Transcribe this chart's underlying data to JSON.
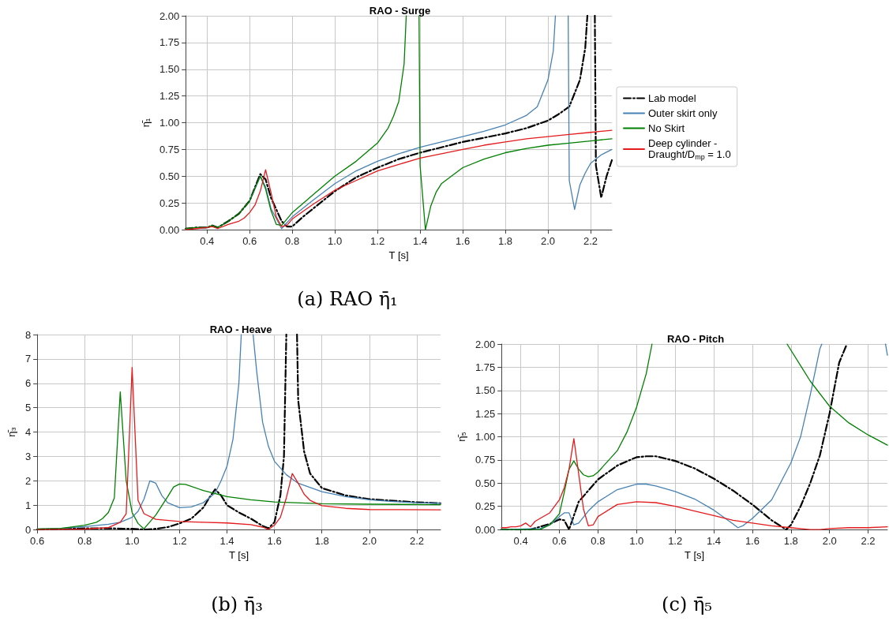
{
  "chart_data": [
    {
      "type": "line",
      "title": "RAO - Surge",
      "xlabel": "T [s]",
      "ylabel": "η̄₁",
      "annotations": [
        "(a) RAO η̄₁"
      ],
      "xlim": [
        0.3,
        2.3
      ],
      "xticks": [
        {
          "value": 0.4,
          "label": "0.4"
        },
        {
          "value": 0.6,
          "label": "0.6"
        },
        {
          "value": 0.8,
          "label": "0.8"
        },
        {
          "value": 1.0,
          "label": "1.0"
        },
        {
          "value": 1.2,
          "label": "1.2"
        },
        {
          "value": 1.4,
          "label": "1.4"
        },
        {
          "value": 1.6,
          "label": "1.6"
        },
        {
          "value": 1.8,
          "label": "1.8"
        },
        {
          "value": 2.0,
          "label": "2.0"
        },
        {
          "value": 2.2,
          "label": "2.2"
        }
      ],
      "ylim": [
        0,
        2
      ],
      "yticks": [
        {
          "value": 0,
          "label": "0.00"
        },
        {
          "value": 0.25,
          "label": "0.25"
        },
        {
          "value": 0.5,
          "label": "0.50"
        },
        {
          "value": 0.75,
          "label": "0.75"
        },
        {
          "value": 1,
          "label": "1.00"
        },
        {
          "value": 1.25,
          "label": "1.25"
        },
        {
          "value": 1.5,
          "label": "1.50"
        },
        {
          "value": 1.75,
          "label": "1.75"
        },
        {
          "value": 2,
          "label": "2.00"
        }
      ],
      "grid": true,
      "legend": "right",
      "marker": "none",
      "series": [
        {
          "name": "Lab model",
          "color": "#000000",
          "line_style": "dashdot",
          "x": [
            0.3,
            0.35,
            0.4,
            0.425,
            0.45,
            0.5,
            0.55,
            0.6,
            0.65,
            0.675,
            0.7,
            0.75,
            0.775,
            0.8,
            0.85,
            0.9,
            1.0,
            1.1,
            1.2,
            1.3,
            1.4,
            1.5,
            1.6,
            1.7,
            1.8,
            1.9,
            2.0,
            2.05,
            2.1,
            2.15,
            2.175,
            2.185,
            2.2,
            2.22,
            2.225,
            2.25,
            2.275,
            2.3
          ],
          "values": [
            0.01,
            0.02,
            0.02,
            0.04,
            0.02,
            0.08,
            0.15,
            0.27,
            0.52,
            0.47,
            0.3,
            0.08,
            0.03,
            0.03,
            0.12,
            0.2,
            0.36,
            0.49,
            0.58,
            0.66,
            0.72,
            0.77,
            0.82,
            0.86,
            0.9,
            0.95,
            1.02,
            1.08,
            1.15,
            1.4,
            1.7,
            2.0,
            null,
            2.0,
            0.6,
            0.3,
            0.5,
            0.65
          ]
        },
        {
          "name": "Outer skirt only",
          "color": "#4682b4",
          "line_style": "solid",
          "x": [
            0.6,
            0.65,
            0.675,
            0.7,
            0.75,
            0.8,
            0.9,
            1.0,
            1.1,
            1.2,
            1.3,
            1.4,
            1.5,
            1.6,
            1.7,
            1.8,
            1.9,
            1.95,
            2.0,
            2.025,
            2.035,
            2.06,
            2.095,
            2.1,
            2.125,
            2.15,
            2.175,
            2.2,
            2.25,
            2.3
          ],
          "values": [
            0.27,
            0.5,
            0.4,
            0.2,
            0.01,
            0.12,
            0.28,
            0.43,
            0.55,
            0.64,
            0.71,
            0.77,
            0.82,
            0.87,
            0.92,
            0.98,
            1.07,
            1.15,
            1.4,
            1.67,
            2.0,
            null,
            2.0,
            0.46,
            0.19,
            0.42,
            0.53,
            0.62,
            0.7,
            0.75
          ]
        },
        {
          "name": "No Skirt",
          "color": "#008000",
          "line_style": "solid",
          "x": [
            0.3,
            0.35,
            0.4,
            0.425,
            0.45,
            0.5,
            0.55,
            0.6,
            0.65,
            0.675,
            0.7,
            0.725,
            0.75,
            0.775,
            0.8,
            0.9,
            1.0,
            1.1,
            1.2,
            1.25,
            1.275,
            1.3,
            1.325,
            1.335,
            1.36,
            1.395,
            1.4,
            1.425,
            1.45,
            1.475,
            1.5,
            1.6,
            1.7,
            1.8,
            1.9,
            2.0,
            2.1,
            2.2,
            2.3
          ],
          "values": [
            0.01,
            0.02,
            0.02,
            0.04,
            0.02,
            0.08,
            0.15,
            0.27,
            0.5,
            0.38,
            0.18,
            0.05,
            0.04,
            0.1,
            0.16,
            0.33,
            0.5,
            0.64,
            0.81,
            0.95,
            1.06,
            1.2,
            1.55,
            2.0,
            null,
            2.0,
            0.6,
            0.0,
            0.22,
            0.35,
            0.43,
            0.58,
            0.66,
            0.72,
            0.76,
            0.79,
            0.81,
            0.83,
            0.85
          ]
        },
        {
          "name": "Deep cylinder -\nDraught/D$_{mp}$ = 1.0",
          "color": "#e41a1c",
          "line_style": "solid",
          "x": [
            0.3,
            0.35,
            0.4,
            0.425,
            0.45,
            0.5,
            0.55,
            0.575,
            0.6,
            0.625,
            0.65,
            0.675,
            0.7,
            0.725,
            0.75,
            0.775,
            0.8,
            0.9,
            1.0,
            1.1,
            1.2,
            1.3,
            1.4,
            1.5,
            1.6,
            1.7,
            1.8,
            1.9,
            2.0,
            2.1,
            2.2,
            2.3
          ],
          "values": [
            0.0,
            0.01,
            0.02,
            0.03,
            0.01,
            0.05,
            0.08,
            0.11,
            0.16,
            0.23,
            0.36,
            0.56,
            0.35,
            0.12,
            0.03,
            0.04,
            0.1,
            0.24,
            0.37,
            0.46,
            0.55,
            0.61,
            0.67,
            0.71,
            0.75,
            0.79,
            0.82,
            0.85,
            0.87,
            0.89,
            0.91,
            0.93
          ]
        }
      ]
    },
    {
      "type": "line",
      "title": "RAO - Heave",
      "xlabel": "T [s]",
      "ylabel": "η̄₃",
      "annotations": [
        "(b) η̄₃"
      ],
      "xlim": [
        0.6,
        2.3
      ],
      "xticks": [
        {
          "value": 0.6,
          "label": "0.6"
        },
        {
          "value": 0.8,
          "label": "0.8"
        },
        {
          "value": 1.0,
          "label": "1.0"
        },
        {
          "value": 1.2,
          "label": "1.2"
        },
        {
          "value": 1.4,
          "label": "1.4"
        },
        {
          "value": 1.6,
          "label": "1.6"
        },
        {
          "value": 1.8,
          "label": "1.8"
        },
        {
          "value": 2.0,
          "label": "2.0"
        },
        {
          "value": 2.2,
          "label": "2.2"
        }
      ],
      "ylim": [
        0,
        8
      ],
      "yticks": [
        0,
        1,
        2,
        3,
        4,
        5,
        6,
        7,
        8
      ],
      "grid": true,
      "marker": "none",
      "series": [
        {
          "color": "#000000",
          "line_style": "dashdot",
          "x": [
            0.6,
            0.7,
            0.8,
            0.9,
            1.0,
            1.05,
            1.1,
            1.15,
            1.2,
            1.25,
            1.3,
            1.325,
            1.35,
            1.375,
            1.4,
            1.45,
            1.5,
            1.55,
            1.575,
            1.6,
            1.625,
            1.64,
            1.65,
            1.67,
            1.695,
            1.7,
            1.725,
            1.75,
            1.8,
            1.9,
            2.0,
            2.1,
            2.2,
            2.3
          ],
          "values": [
            0.0,
            0.03,
            0.05,
            0.05,
            0.03,
            0.0,
            0.03,
            0.1,
            0.25,
            0.45,
            0.9,
            1.3,
            1.65,
            1.4,
            1.0,
            0.7,
            0.45,
            0.15,
            0.05,
            0.3,
            1.4,
            3,
            8,
            null,
            8,
            5.3,
            3.2,
            2.3,
            1.7,
            1.4,
            1.25,
            1.18,
            1.12,
            1.08
          ]
        },
        {
          "color": "#4682b4",
          "line_style": "solid",
          "x": [
            0.6,
            0.7,
            0.8,
            0.9,
            0.95,
            1.0,
            1.025,
            1.05,
            1.075,
            1.1,
            1.125,
            1.15,
            1.2,
            1.25,
            1.3,
            1.35,
            1.375,
            1.4,
            1.425,
            1.45,
            1.46,
            1.48,
            1.51,
            1.525,
            1.55,
            1.575,
            1.6,
            1.65,
            1.7,
            1.8,
            1.9,
            2.0,
            2.1,
            2.2,
            2.3
          ],
          "values": [
            0.02,
            0.05,
            0.12,
            0.22,
            0.3,
            0.5,
            0.75,
            1.25,
            2.0,
            1.9,
            1.4,
            1.1,
            0.9,
            0.93,
            1.1,
            1.5,
            2.0,
            2.6,
            3.7,
            6.0,
            8,
            null,
            8,
            6.5,
            4.4,
            3.4,
            2.8,
            2.25,
            1.9,
            1.55,
            1.35,
            1.22,
            1.15,
            1.1,
            1.08
          ]
        },
        {
          "color": "#008000",
          "line_style": "solid",
          "x": [
            0.6,
            0.7,
            0.8,
            0.85,
            0.875,
            0.9,
            0.925,
            0.95,
            0.975,
            1.0,
            1.025,
            1.05,
            1.1,
            1.15,
            1.175,
            1.2,
            1.225,
            1.3,
            1.4,
            1.5,
            1.6,
            1.8,
            2.0,
            2.3
          ],
          "values": [
            0.02,
            0.05,
            0.18,
            0.3,
            0.45,
            0.7,
            1.3,
            5.65,
            2.0,
            0.7,
            0.25,
            0.03,
            0.6,
            1.35,
            1.75,
            1.87,
            1.85,
            1.6,
            1.35,
            1.22,
            1.13,
            1.06,
            1.04,
            1.02
          ]
        },
        {
          "color": "#e41a1c",
          "line_style": "solid",
          "x": [
            0.6,
            0.8,
            0.9,
            0.95,
            0.975,
            0.985,
            1.0,
            1.025,
            1.05,
            1.1,
            1.2,
            1.3,
            1.4,
            1.5,
            1.55,
            1.575,
            1.6,
            1.625,
            1.65,
            1.675,
            1.7,
            1.725,
            1.75,
            1.8,
            1.9,
            2.0,
            2.3
          ],
          "values": [
            0.0,
            0.02,
            0.08,
            0.3,
            0.65,
            3,
            6.65,
            1.2,
            0.65,
            0.42,
            0.33,
            0.3,
            0.27,
            0.2,
            0.1,
            0.0,
            0.18,
            0.5,
            1.3,
            2.3,
            1.9,
            1.45,
            1.2,
            0.98,
            0.87,
            0.82,
            0.81
          ]
        }
      ]
    },
    {
      "type": "line",
      "title": "RAO - Pitch",
      "xlabel": "T [s]",
      "ylabel": "η̄₅",
      "annotations": [
        "(c) η̄₅"
      ],
      "xlim": [
        0.3,
        2.3
      ],
      "xticks": [
        {
          "value": 0.4,
          "label": "0.4"
        },
        {
          "value": 0.6,
          "label": "0.6"
        },
        {
          "value": 0.8,
          "label": "0.8"
        },
        {
          "value": 1.0,
          "label": "1.0"
        },
        {
          "value": 1.2,
          "label": "1.2"
        },
        {
          "value": 1.4,
          "label": "1.4"
        },
        {
          "value": 1.6,
          "label": "1.6"
        },
        {
          "value": 1.8,
          "label": "1.8"
        },
        {
          "value": 2.0,
          "label": "2.0"
        },
        {
          "value": 2.2,
          "label": "2.2"
        }
      ],
      "ylim": [
        0,
        2
      ],
      "yticks": [
        {
          "value": 0,
          "label": "0.00"
        },
        {
          "value": 0.25,
          "label": "0.25"
        },
        {
          "value": 0.5,
          "label": "0.50"
        },
        {
          "value": 0.75,
          "label": "0.75"
        },
        {
          "value": 1,
          "label": "1.00"
        },
        {
          "value": 1.25,
          "label": "1.25"
        },
        {
          "value": 1.5,
          "label": "1.50"
        },
        {
          "value": 1.75,
          "label": "1.75"
        },
        {
          "value": 2,
          "label": "2.00"
        }
      ],
      "grid": true,
      "marker": "none",
      "series": [
        {
          "color": "#000000",
          "line_style": "dashdot",
          "x": [
            0.3,
            0.45,
            0.5,
            0.55,
            0.6,
            0.625,
            0.65,
            0.675,
            0.7,
            0.75,
            0.8,
            0.9,
            1.0,
            1.05,
            1.1,
            1.2,
            1.3,
            1.4,
            1.5,
            1.6,
            1.7,
            1.775,
            1.8,
            1.85,
            1.9,
            1.95,
            2.0,
            2.05,
            2.09
          ],
          "values": [
            0.0,
            0.0,
            0.03,
            0.06,
            0.11,
            0.1,
            0.0,
            0.15,
            0.3,
            0.42,
            0.54,
            0.69,
            0.78,
            0.79,
            0.79,
            0.74,
            0.66,
            0.55,
            0.42,
            0.27,
            0.1,
            0.0,
            0.05,
            0.25,
            0.5,
            0.8,
            1.25,
            1.8,
            2.0
          ]
        },
        {
          "color": "#4682b4",
          "line_style": "solid",
          "x": [
            0.3,
            0.5,
            0.55,
            0.6,
            0.625,
            0.65,
            0.675,
            0.7,
            0.75,
            0.8,
            0.9,
            1.0,
            1.05,
            1.1,
            1.2,
            1.3,
            1.4,
            1.5,
            1.525,
            1.55,
            1.6,
            1.7,
            1.8,
            1.85,
            1.9,
            1.95,
            1.96,
            2.1,
            2.29,
            2.3
          ],
          "values": [
            0.0,
            0.01,
            0.05,
            0.14,
            0.18,
            0.18,
            0.05,
            0.07,
            0.2,
            0.3,
            0.43,
            0.49,
            0.49,
            0.47,
            0.41,
            0.33,
            0.21,
            0.06,
            0.02,
            0.04,
            0.12,
            0.32,
            0.72,
            1.0,
            1.45,
            1.95,
            2.0,
            null,
            2.0,
            1.88
          ]
        },
        {
          "color": "#008000",
          "line_style": "solid",
          "x": [
            0.3,
            0.5,
            0.55,
            0.6,
            0.625,
            0.65,
            0.675,
            0.7,
            0.725,
            0.75,
            0.775,
            0.8,
            0.9,
            0.95,
            1.0,
            1.05,
            1.08,
            1.4,
            1.78,
            1.9,
            2.0,
            2.1,
            2.2,
            2.3
          ],
          "values": [
            0.0,
            0.0,
            0.05,
            0.17,
            0.4,
            0.65,
            0.74,
            0.65,
            0.59,
            0.57,
            0.58,
            0.62,
            0.85,
            1.05,
            1.32,
            1.68,
            2.0,
            null,
            2.0,
            1.6,
            1.33,
            1.15,
            1.02,
            0.91
          ]
        },
        {
          "color": "#e41a1c",
          "line_style": "solid",
          "x": [
            0.3,
            0.325,
            0.35,
            0.375,
            0.4,
            0.425,
            0.45,
            0.475,
            0.5,
            0.55,
            0.6,
            0.625,
            0.65,
            0.675,
            0.7,
            0.725,
            0.75,
            0.775,
            0.8,
            0.9,
            1.0,
            1.1,
            1.2,
            1.3,
            1.4,
            1.5,
            1.6,
            1.7,
            1.8,
            1.9,
            1.95,
            2.0,
            2.1,
            2.2,
            2.3
          ],
          "values": [
            0.02,
            0.02,
            0.03,
            0.03,
            0.04,
            0.07,
            0.03,
            0.09,
            0.12,
            0.18,
            0.32,
            0.45,
            0.65,
            0.98,
            0.6,
            0.22,
            0.04,
            0.05,
            0.14,
            0.27,
            0.3,
            0.29,
            0.25,
            0.2,
            0.15,
            0.1,
            0.07,
            0.04,
            0.02,
            0.0,
            0.0,
            0.01,
            0.02,
            0.02,
            0.03
          ]
        }
      ]
    }
  ]
}
